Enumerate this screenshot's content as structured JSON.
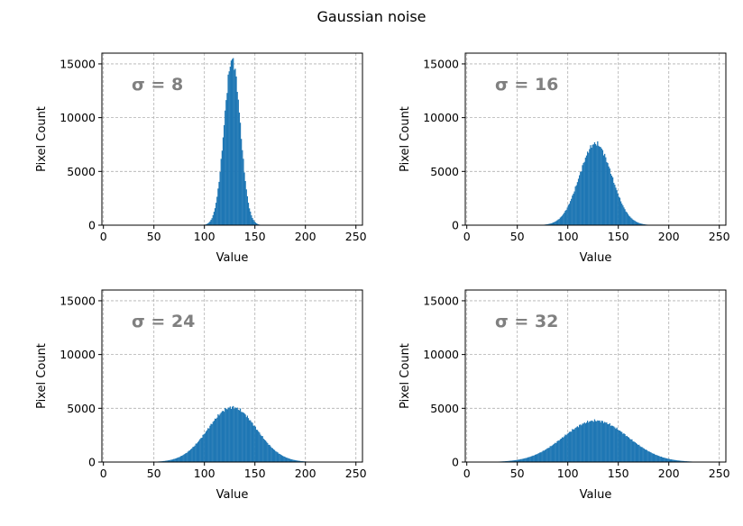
{
  "figure": {
    "title": "Gaussian noise",
    "bar_color": "#1f77b4",
    "grid_color": "#b0b0b0",
    "annotation_color": "#808080"
  },
  "chart_data": [
    {
      "type": "bar",
      "subtype": "histogram",
      "annotation": "σ = 8",
      "mean": 127.5,
      "sigma": 8,
      "peak": 15400,
      "bin_width": 1,
      "xlabel": "Value",
      "ylabel": "Pixel Count",
      "xlim": [
        0,
        255
      ],
      "ylim": [
        0,
        16000
      ],
      "xticks": [
        0,
        50,
        100,
        150,
        200,
        250
      ],
      "yticks": [
        0,
        5000,
        10000,
        15000
      ],
      "grid": true
    },
    {
      "type": "bar",
      "subtype": "histogram",
      "annotation": "σ = 16",
      "mean": 127.5,
      "sigma": 16,
      "peak": 7600,
      "bin_width": 1,
      "xlabel": "Value",
      "ylabel": "Pixel Count",
      "xlim": [
        0,
        255
      ],
      "ylim": [
        0,
        16000
      ],
      "xticks": [
        0,
        50,
        100,
        150,
        200,
        250
      ],
      "yticks": [
        0,
        5000,
        10000,
        15000
      ],
      "grid": true
    },
    {
      "type": "bar",
      "subtype": "histogram",
      "annotation": "σ = 24",
      "mean": 127.5,
      "sigma": 24,
      "peak": 5100,
      "bin_width": 1,
      "xlabel": "Value",
      "ylabel": "Pixel Count",
      "xlim": [
        0,
        255
      ],
      "ylim": [
        0,
        16000
      ],
      "xticks": [
        0,
        50,
        100,
        150,
        200,
        250
      ],
      "yticks": [
        0,
        5000,
        10000,
        15000
      ],
      "grid": true
    },
    {
      "type": "bar",
      "subtype": "histogram",
      "annotation": "σ = 32",
      "mean": 127.5,
      "sigma": 32,
      "peak": 3850,
      "bin_width": 1,
      "xlabel": "Value",
      "ylabel": "Pixel Count",
      "xlim": [
        0,
        255
      ],
      "ylim": [
        0,
        16000
      ],
      "xticks": [
        0,
        50,
        100,
        150,
        200,
        250
      ],
      "yticks": [
        0,
        5000,
        10000,
        15000
      ],
      "grid": true
    }
  ]
}
